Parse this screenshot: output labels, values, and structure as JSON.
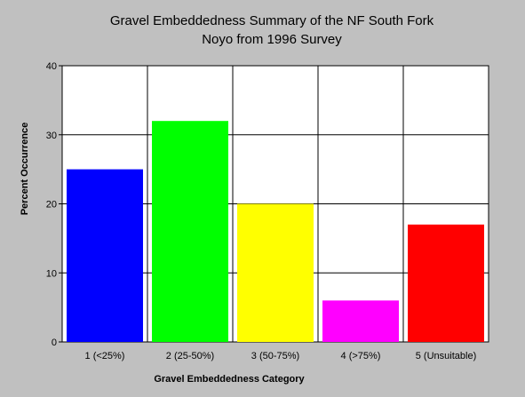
{
  "chart_data": {
    "type": "bar",
    "title": [
      "Gravel Embeddedness Summary of the NF South Fork",
      "Noyo from 1996 Survey"
    ],
    "xlabel": "Gravel Embeddedness Category",
    "ylabel": "Percent Occurrence",
    "categories": [
      "1 (<25%)",
      "2 (25-50%)",
      "3 (50-75%)",
      "4 (>75%)",
      "5 (Unsuitable)"
    ],
    "values": [
      25,
      32,
      20,
      6,
      17
    ],
    "colors": [
      "#0000ff",
      "#00ff00",
      "#ffff00",
      "#ff00ff",
      "#ff0000"
    ],
    "ylim": [
      0,
      40
    ],
    "yticks": [
      0,
      10,
      20,
      30,
      40
    ],
    "grid": true,
    "legend": "none"
  }
}
